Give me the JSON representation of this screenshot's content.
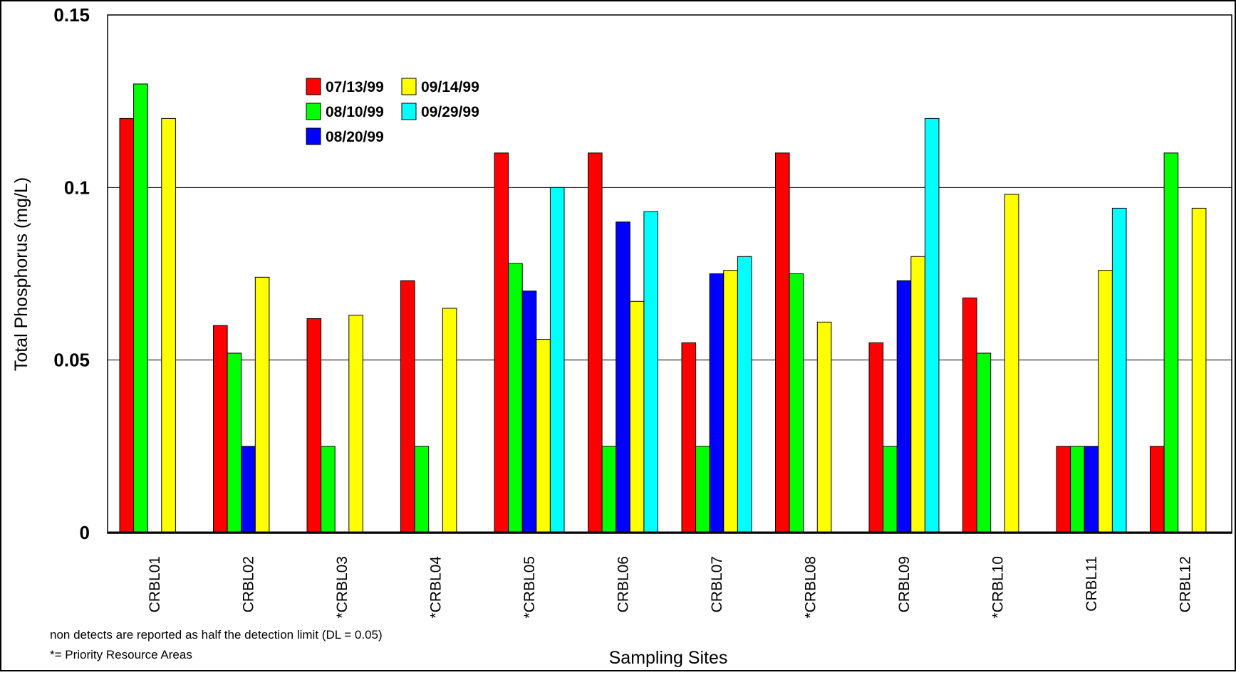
{
  "chart_data": {
    "type": "bar",
    "xlabel": "Sampling Sites",
    "ylabel": "Total Phosphorus (mg/L)",
    "ylim": [
      0,
      0.15
    ],
    "y_ticks": [
      "0",
      "0.05",
      "0.1",
      "0.15"
    ],
    "grid": true,
    "legend_position": "top-left",
    "categories": [
      "CRBL01",
      "CRBL02",
      "*CRBL03",
      "*CRBL04",
      "*CRBL05",
      "CRBL06",
      "CRBL07",
      "*CRBL08",
      "CRBL09",
      "*CRBL10",
      "CRBL11",
      "CRBL12"
    ],
    "series": [
      {
        "name": "07/13/99",
        "color": "#ff0000",
        "values": [
          0.12,
          0.06,
          0.062,
          0.073,
          0.11,
          0.11,
          0.055,
          0.11,
          0.055,
          0.068,
          0.025,
          0.025
        ]
      },
      {
        "name": "08/10/99",
        "color": "#00ff00",
        "values": [
          0.13,
          0.052,
          0.025,
          0.025,
          0.078,
          0.025,
          0.025,
          0.075,
          0.025,
          0.052,
          0.025,
          0.11
        ]
      },
      {
        "name": "08/20/99",
        "color": "#0000ff",
        "values": [
          null,
          0.025,
          null,
          null,
          0.07,
          0.09,
          0.075,
          null,
          0.073,
          null,
          0.025,
          null
        ]
      },
      {
        "name": "09/14/99",
        "color": "#ffff00",
        "values": [
          0.12,
          0.074,
          0.063,
          0.065,
          0.056,
          0.067,
          0.076,
          0.061,
          0.08,
          0.098,
          0.076,
          0.094
        ]
      },
      {
        "name": "09/29/99",
        "color": "#00ffff",
        "values": [
          null,
          null,
          null,
          null,
          0.1,
          0.093,
          0.08,
          null,
          0.12,
          null,
          0.094,
          null
        ]
      }
    ],
    "legend_order": [
      "07/13/99",
      "09/14/99",
      "08/10/99",
      "09/29/99",
      "08/20/99"
    ],
    "notes": [
      "non detects are reported as half the detection limit (DL = 0.05)",
      "*= Priority Resource Areas"
    ]
  }
}
